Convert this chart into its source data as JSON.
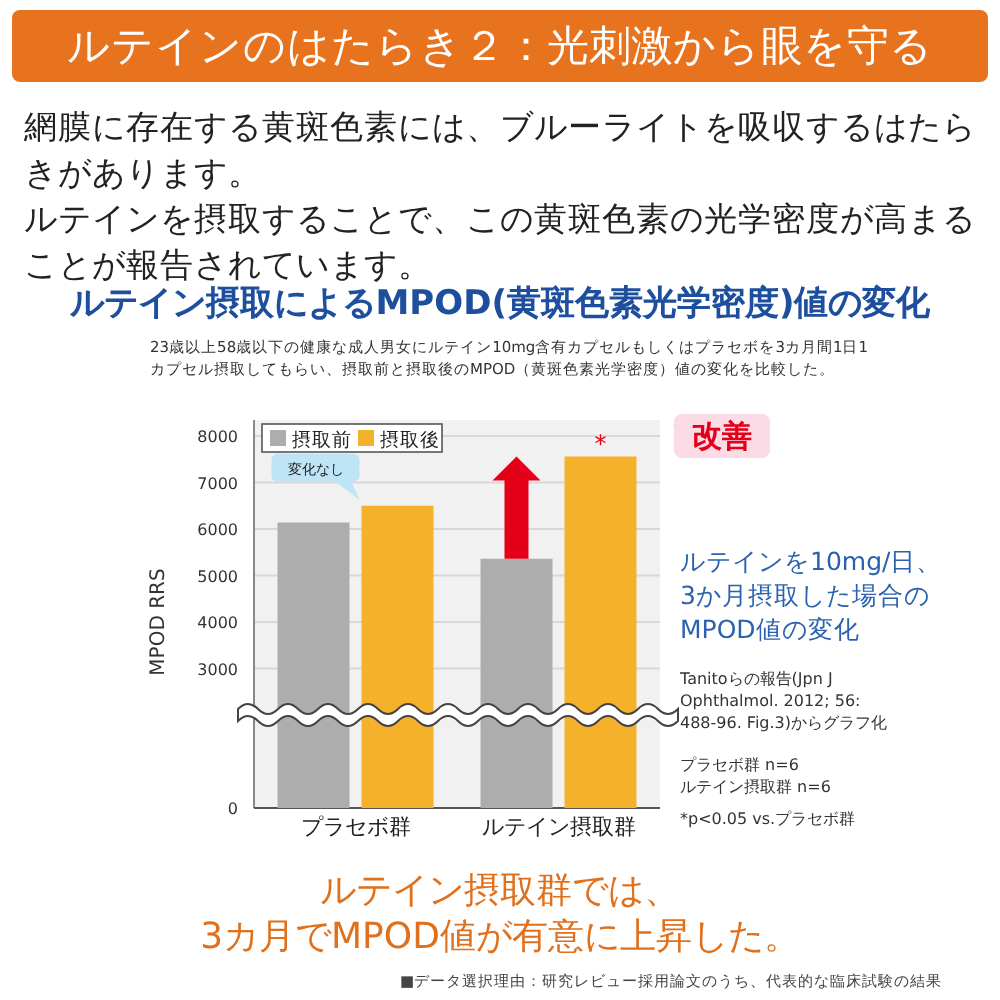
{
  "chart_data": {
    "type": "bar",
    "title": "ルテイン摂取によるMPOD(黄斑色素光学密度)値の変化",
    "subtitle": "23歳以上58歳以下の健康な成人男女にルテイン10mg含有カプセルもしくはプラセボを3カ月間1日1カプセル摂取してもらい、摂取前と摂取後のMPOD（黄斑色素光学密度）値の変化を比較した。",
    "ylabel": "MPOD RRS",
    "categories": [
      "プラセボ群",
      "ルテイン摂取群"
    ],
    "series": [
      {
        "name": "摂取前",
        "color": "#adadad",
        "values": [
          6140,
          5360
        ]
      },
      {
        "name": "摂取後",
        "color": "#f6b12c",
        "values": [
          6500,
          7560
        ]
      }
    ],
    "ylim": [
      0,
      8000
    ],
    "yticks": [
      0,
      3000,
      4000,
      5000,
      6000,
      7000,
      8000
    ],
    "grid": "y",
    "legend": "top left",
    "annotations": [
      "ルテインのはたらき２：光刺激から眼を守る",
      "網膜に存在する黄斑色素には、ブルーライトを吸収するはたらきがあります。",
      "ルテインを摂取することで、この黄斑色素の光学密度が高まることが報告されています。",
      "ルテインを10mg/日、\n3か月摂取した場合の\nMPOD値の変化",
      "Tanitoらの報告(Jpn J\nOphthalmol. 2012; 56:\n488-96. Fig.3)からグラフ化",
      "プラセボ群 n=6\nルテイン摂取群 n=6",
      "*p<0.05 vs.プラセボ群",
      "ルテイン摂取群では、\n3カ月でMPOD値が有意に上昇した。",
      "■データ選択理由：研究レビュー採用論文のうち、代表的な臨床試験の結果",
      "改善",
      {
        "text": "変化なし",
        "x": "プラセボ群",
        "y": 6500
      },
      {
        "text": "*",
        "x": "ルテイン摂取群",
        "y": 7560
      }
    ]
  }
}
